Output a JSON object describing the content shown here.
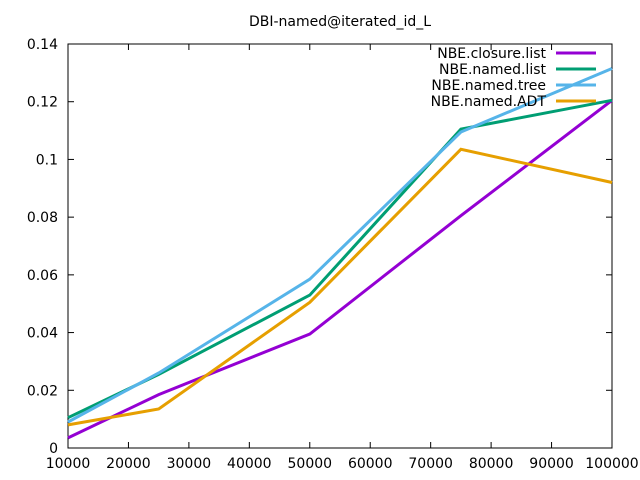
{
  "chart_data": {
    "type": "line",
    "title": "DBI-named@iterated_id_L",
    "xlabel": "",
    "ylabel": "",
    "xlim": [
      10000,
      100000
    ],
    "ylim": [
      0,
      0.14
    ],
    "x_ticks": [
      "10000",
      "20000",
      "30000",
      "40000",
      "50000",
      "60000",
      "70000",
      "80000",
      "90000",
      "100000"
    ],
    "y_ticks": [
      "0",
      "0.02",
      "0.04",
      "0.06",
      "0.08",
      "0.1",
      "0.12",
      "0.14"
    ],
    "grid": false,
    "legend_position": "top-right",
    "series": [
      {
        "name": "NBE.closure.list",
        "color": "#9400d3",
        "x": [
          10000,
          25000,
          50000,
          75000,
          100000
        ],
        "values": [
          0.0035,
          0.0185,
          0.0395,
          0.0805,
          0.1205
        ]
      },
      {
        "name": "NBE.named.list",
        "color": "#009e73",
        "x": [
          10000,
          25000,
          50000,
          75000,
          100000
        ],
        "values": [
          0.0105,
          0.0255,
          0.053,
          0.1105,
          0.1205
        ]
      },
      {
        "name": "NBE.named.tree",
        "color": "#56b4e9",
        "x": [
          10000,
          25000,
          50000,
          75000,
          100000
        ],
        "values": [
          0.009,
          0.026,
          0.0585,
          0.1095,
          0.1315
        ]
      },
      {
        "name": "NBE.named.ADT",
        "color": "#e69f00",
        "x": [
          10000,
          25000,
          50000,
          75000,
          100000
        ],
        "values": [
          0.008,
          0.0135,
          0.0505,
          0.1035,
          0.092
        ]
      }
    ]
  }
}
